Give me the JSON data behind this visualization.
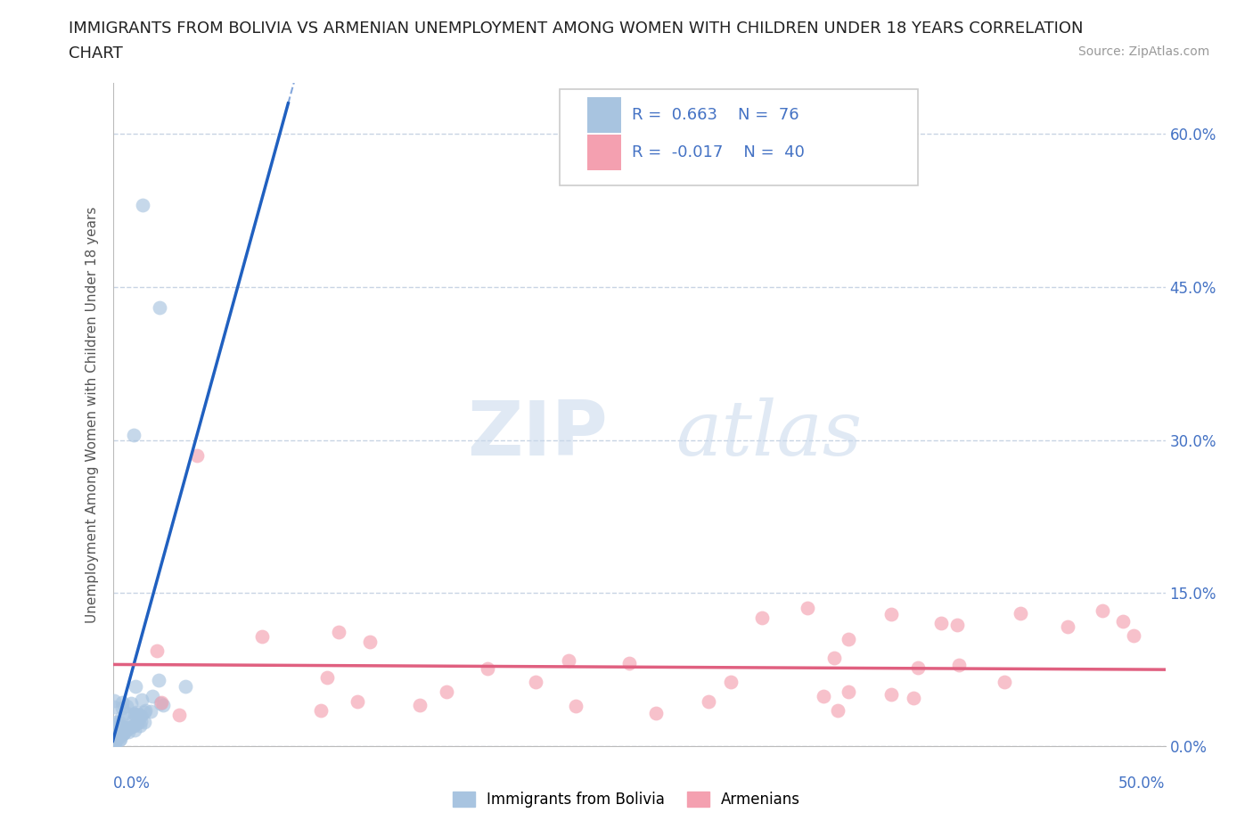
{
  "title_line1": "IMMIGRANTS FROM BOLIVIA VS ARMENIAN UNEMPLOYMENT AMONG WOMEN WITH CHILDREN UNDER 18 YEARS CORRELATION",
  "title_line2": "CHART",
  "source_text": "Source: ZipAtlas.com",
  "ylabel": "Unemployment Among Women with Children Under 18 years",
  "xlim": [
    0,
    0.5
  ],
  "ylim": [
    0,
    0.65
  ],
  "yticks": [
    0.0,
    0.15,
    0.3,
    0.45,
    0.6
  ],
  "ytick_labels": [
    "0.0%",
    "15.0%",
    "30.0%",
    "45.0%",
    "60.0%"
  ],
  "xtick_labels_bottom": [
    "0.0%",
    "50.0%"
  ],
  "r_bolivia": 0.663,
  "n_bolivia": 76,
  "r_armenian": -0.017,
  "n_armenian": 40,
  "bolivia_color": "#a8c4e0",
  "armenia_color": "#f4a0b0",
  "bolivia_line_color": "#2060c0",
  "armenia_line_color": "#e06080",
  "bolivia_label": "Immigrants from Bolivia",
  "armenia_label": "Armenians",
  "watermark_zip": "ZIP",
  "watermark_atlas": "atlas",
  "background_color": "#ffffff",
  "grid_color": "#c8d4e4",
  "title_fontsize": 13,
  "axis_label_fontsize": 11,
  "tick_fontsize": 12,
  "legend_fontsize": 13
}
